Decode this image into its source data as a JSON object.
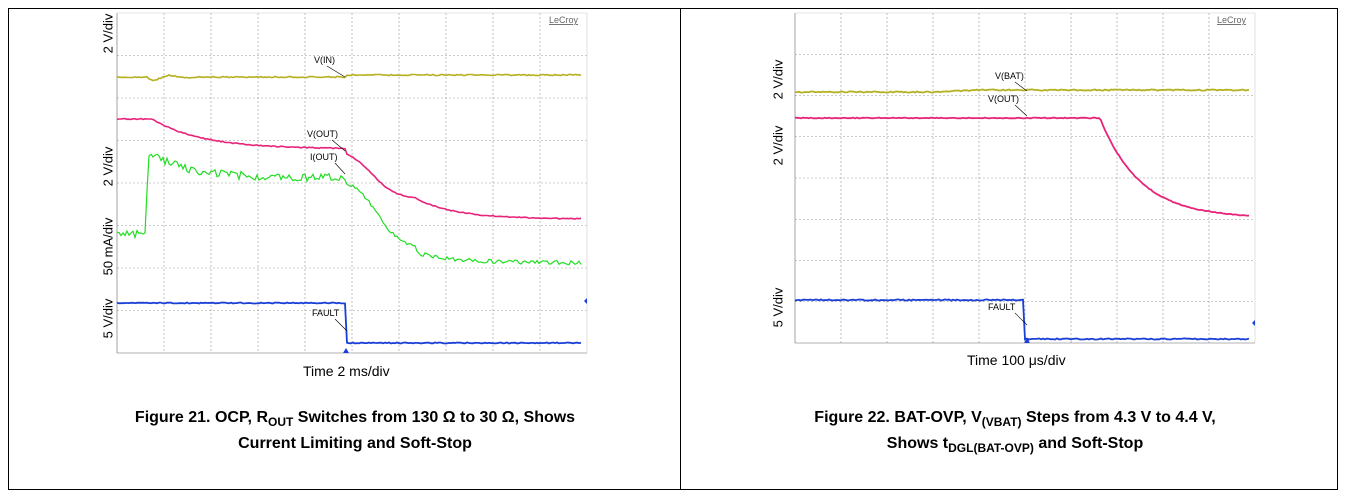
{
  "figure21": {
    "brand": "LeCroy",
    "ch_labels": [
      "2 V/div",
      "2 V/div",
      "50 mA/div",
      "5 V/div"
    ],
    "annotations": [
      "V(IN)",
      "V(OUT)",
      "I(OUT)",
      "FAULT"
    ],
    "time_label": "Time 2 ms/div",
    "caption_prefix": "Figure 21. OCP, R",
    "caption_sub": "OUT",
    "caption_line1_rest": " Switches from 130 Ω to 30 Ω, Shows",
    "caption_line2": "Current Limiting and Soft-Stop",
    "colors": {
      "vin": "#b5b020",
      "vout": "#e8237a",
      "iout": "#22dd22",
      "fault": "#1a3fd6"
    }
  },
  "figure22": {
    "brand": "LeCroy",
    "ch_labels": [
      "2 V/div",
      "2 V/div",
      "5 V/div"
    ],
    "annotations": [
      "V(BAT)",
      "V(OUT)",
      "FAULT"
    ],
    "time_label_prefix": "Time 100 ",
    "time_label_unit": "μs/div",
    "caption_line1_prefix": "Figure 22. BAT-OVP, V",
    "caption_line1_sub": "(VBAT)",
    "caption_line1_rest": " Steps from 4.3 V to 4.4 V,",
    "caption_line2_prefix": "Shows t",
    "caption_line2_sub": "DGL(BAT-OVP)",
    "caption_line2_rest": " and Soft-Stop",
    "colors": {
      "vbat": "#b5b020",
      "vout": "#e8237a",
      "fault": "#1a3fd6"
    }
  }
}
